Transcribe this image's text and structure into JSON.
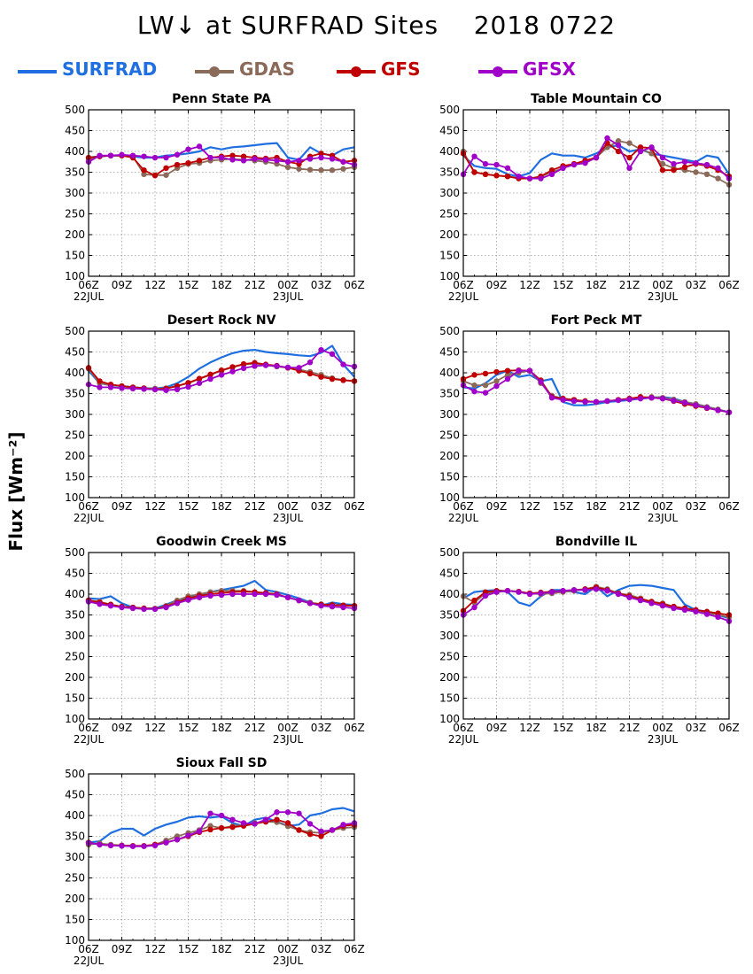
{
  "page": {
    "title": "LW↓ at SURFRAD Sites    2018 0722",
    "ylabel": "Flux [Wm⁻²]"
  },
  "legend": [
    {
      "name": "SURFRAD",
      "color": "#1f6fe0",
      "marker": false
    },
    {
      "name": "GDAS",
      "color": "#8c6a5a",
      "marker": true
    },
    {
      "name": "GFS",
      "color": "#c00000",
      "marker": true
    },
    {
      "name": "GFSX",
      "color": "#a000c8",
      "marker": true
    }
  ],
  "axes": {
    "x_ticks": [
      "06Z",
      "09Z",
      "12Z",
      "15Z",
      "18Z",
      "21Z",
      "00Z",
      "03Z",
      "06Z"
    ],
    "x_date_labels": [
      {
        "at": "06Z",
        "label": "22JUL"
      },
      {
        "at": "00Z",
        "label": "23JUL"
      }
    ],
    "y_ticks": [
      100,
      150,
      200,
      250,
      300,
      350,
      400,
      450,
      500
    ]
  },
  "chart_data": [
    {
      "type": "line",
      "title": "Penn State PA",
      "x": [
        6,
        7,
        8,
        9,
        10,
        11,
        12,
        13,
        14,
        15,
        16,
        17,
        18,
        19,
        20,
        21,
        22,
        23,
        24,
        25,
        26,
        27,
        28,
        29,
        30
      ],
      "xlim": [
        6,
        30
      ],
      "ylim": [
        100,
        500
      ],
      "grid": true,
      "series": [
        {
          "name": "SURFRAD",
          "values": [
            385,
            388,
            390,
            390,
            388,
            385,
            385,
            390,
            392,
            395,
            400,
            410,
            405,
            410,
            412,
            415,
            418,
            420,
            385,
            380,
            410,
            395,
            390,
            405,
            410
          ]
        },
        {
          "name": "GDAS",
          "values": [
            380,
            388,
            390,
            390,
            388,
            345,
            343,
            343,
            360,
            370,
            372,
            378,
            380,
            382,
            380,
            378,
            375,
            370,
            362,
            358,
            356,
            355,
            355,
            358,
            362
          ]
        },
        {
          "name": "GFS",
          "values": [
            385,
            388,
            390,
            390,
            385,
            355,
            342,
            360,
            368,
            372,
            378,
            385,
            388,
            390,
            388,
            385,
            383,
            385,
            375,
            370,
            388,
            395,
            390,
            375,
            378
          ]
        },
        {
          "name": "GFSX",
          "values": [
            375,
            390,
            390,
            392,
            390,
            388,
            385,
            385,
            392,
            405,
            412,
            385,
            385,
            380,
            378,
            382,
            380,
            378,
            375,
            378,
            382,
            385,
            382,
            375,
            368
          ]
        }
      ]
    },
    {
      "type": "line",
      "title": "Table Mountain CO",
      "x": [
        6,
        7,
        8,
        9,
        10,
        11,
        12,
        13,
        14,
        15,
        16,
        17,
        18,
        19,
        20,
        21,
        22,
        23,
        24,
        25,
        26,
        27,
        28,
        29,
        30
      ],
      "xlim": [
        6,
        30
      ],
      "ylim": [
        100,
        500
      ],
      "grid": true,
      "series": [
        {
          "name": "SURFRAD",
          "values": [
            390,
            365,
            360,
            358,
            345,
            340,
            348,
            380,
            395,
            390,
            390,
            385,
            395,
            410,
            415,
            400,
            405,
            395,
            390,
            385,
            380,
            375,
            390,
            385,
            345
          ]
        },
        {
          "name": "GDAS",
          "values": [
            400,
            350,
            345,
            342,
            340,
            336,
            335,
            340,
            350,
            360,
            370,
            375,
            385,
            410,
            425,
            420,
            405,
            395,
            370,
            360,
            355,
            350,
            345,
            335,
            320
          ]
        },
        {
          "name": "GFS",
          "values": [
            395,
            350,
            345,
            342,
            340,
            335,
            335,
            340,
            355,
            365,
            370,
            378,
            385,
            420,
            400,
            385,
            410,
            408,
            355,
            355,
            362,
            370,
            365,
            355,
            340
          ]
        },
        {
          "name": "GFSX",
          "values": [
            345,
            388,
            370,
            368,
            360,
            340,
            335,
            335,
            345,
            360,
            368,
            372,
            385,
            432,
            415,
            360,
            400,
            410,
            385,
            370,
            375,
            372,
            368,
            360,
            335
          ]
        }
      ]
    },
    {
      "type": "line",
      "title": "Desert Rock NV",
      "x": [
        6,
        7,
        8,
        9,
        10,
        11,
        12,
        13,
        14,
        15,
        16,
        17,
        18,
        19,
        20,
        21,
        22,
        23,
        24,
        25,
        26,
        27,
        28,
        29,
        30
      ],
      "xlim": [
        6,
        30
      ],
      "ylim": [
        100,
        500
      ],
      "grid": true,
      "series": [
        {
          "name": "SURFRAD",
          "values": [
            405,
            375,
            370,
            368,
            365,
            363,
            362,
            365,
            375,
            390,
            410,
            425,
            437,
            447,
            453,
            455,
            450,
            447,
            445,
            442,
            440,
            448,
            465,
            420,
            390
          ]
        },
        {
          "name": "GDAS",
          "values": [
            410,
            375,
            370,
            368,
            365,
            363,
            362,
            363,
            368,
            375,
            385,
            395,
            405,
            413,
            420,
            422,
            418,
            415,
            412,
            408,
            402,
            395,
            387,
            383,
            380
          ]
        },
        {
          "name": "GFS",
          "values": [
            412,
            380,
            372,
            368,
            365,
            363,
            360,
            362,
            368,
            376,
            386,
            396,
            406,
            414,
            421,
            424,
            420,
            417,
            412,
            405,
            398,
            390,
            385,
            382,
            380
          ]
        },
        {
          "name": "GFSX",
          "values": [
            372,
            365,
            365,
            363,
            362,
            361,
            360,
            358,
            360,
            366,
            375,
            385,
            395,
            403,
            411,
            416,
            418,
            416,
            413,
            412,
            425,
            455,
            445,
            420,
            415
          ]
        }
      ]
    },
    {
      "type": "line",
      "title": "Fort Peck MT",
      "x": [
        6,
        7,
        8,
        9,
        10,
        11,
        12,
        13,
        14,
        15,
        16,
        17,
        18,
        19,
        20,
        21,
        22,
        23,
        24,
        25,
        26,
        27,
        28,
        29,
        30
      ],
      "xlim": [
        6,
        30
      ],
      "ylim": [
        100,
        500
      ],
      "grid": true,
      "series": [
        {
          "name": "SURFRAD",
          "values": [
            365,
            362,
            375,
            395,
            405,
            390,
            395,
            380,
            385,
            330,
            322,
            322,
            325,
            330,
            332,
            335,
            338,
            340,
            342,
            338,
            330,
            325,
            318,
            312,
            305
          ]
        },
        {
          "name": "GDAS",
          "values": [
            380,
            370,
            370,
            380,
            395,
            400,
            405,
            375,
            345,
            338,
            335,
            332,
            330,
            332,
            335,
            338,
            340,
            342,
            340,
            336,
            330,
            325,
            318,
            312,
            305
          ]
        },
        {
          "name": "GFS",
          "values": [
            385,
            395,
            398,
            402,
            405,
            406,
            405,
            382,
            342,
            338,
            335,
            332,
            330,
            332,
            335,
            338,
            342,
            340,
            338,
            332,
            325,
            320,
            315,
            310,
            305
          ]
        },
        {
          "name": "GFSX",
          "values": [
            370,
            355,
            352,
            368,
            385,
            405,
            405,
            378,
            340,
            335,
            332,
            330,
            330,
            332,
            334,
            336,
            338,
            340,
            338,
            333,
            328,
            322,
            316,
            310,
            305
          ]
        }
      ]
    },
    {
      "type": "line",
      "title": "Goodwin Creek MS",
      "x": [
        6,
        7,
        8,
        9,
        10,
        11,
        12,
        13,
        14,
        15,
        16,
        17,
        18,
        19,
        20,
        21,
        22,
        23,
        24,
        25,
        26,
        27,
        28,
        29,
        30
      ],
      "xlim": [
        6,
        30
      ],
      "ylim": [
        100,
        500
      ],
      "grid": true,
      "series": [
        {
          "name": "SURFRAD",
          "values": [
            390,
            388,
            395,
            378,
            368,
            365,
            366,
            375,
            385,
            392,
            398,
            405,
            410,
            415,
            420,
            432,
            410,
            405,
            398,
            390,
            380,
            372,
            380,
            376,
            374
          ]
        },
        {
          "name": "GDAS",
          "values": [
            385,
            382,
            375,
            370,
            368,
            365,
            365,
            372,
            385,
            395,
            400,
            405,
            408,
            408,
            408,
            405,
            402,
            398,
            392,
            385,
            380,
            376,
            374,
            373,
            372
          ]
        },
        {
          "name": "GFS",
          "values": [
            385,
            380,
            375,
            370,
            368,
            366,
            365,
            370,
            380,
            390,
            396,
            400,
            403,
            405,
            406,
            405,
            403,
            400,
            392,
            385,
            378,
            375,
            374,
            373,
            372
          ]
        },
        {
          "name": "GFSX",
          "values": [
            382,
            376,
            372,
            368,
            366,
            364,
            364,
            368,
            378,
            386,
            392,
            396,
            398,
            400,
            400,
            400,
            400,
            398,
            392,
            385,
            378,
            372,
            370,
            368,
            366
          ]
        }
      ]
    },
    {
      "type": "line",
      "title": "Bondville IL",
      "x": [
        6,
        7,
        8,
        9,
        10,
        11,
        12,
        13,
        14,
        15,
        16,
        17,
        18,
        19,
        20,
        21,
        22,
        23,
        24,
        25,
        26,
        27,
        28,
        29,
        30
      ],
      "xlim": [
        6,
        30
      ],
      "ylim": [
        100,
        500
      ],
      "grid": true,
      "series": [
        {
          "name": "SURFRAD",
          "values": [
            390,
            405,
            408,
            410,
            405,
            380,
            372,
            395,
            410,
            410,
            405,
            400,
            418,
            395,
            410,
            420,
            422,
            420,
            415,
            410,
            375,
            362,
            358,
            350,
            342
          ]
        },
        {
          "name": "GDAS",
          "values": [
            395,
            380,
            402,
            405,
            408,
            406,
            402,
            400,
            402,
            405,
            408,
            412,
            418,
            412,
            402,
            398,
            390,
            382,
            378,
            370,
            365,
            360,
            355,
            350,
            345
          ]
        },
        {
          "name": "GFS",
          "values": [
            360,
            385,
            405,
            408,
            408,
            406,
            402,
            404,
            406,
            408,
            410,
            412,
            416,
            410,
            402,
            395,
            388,
            382,
            376,
            370,
            366,
            362,
            358,
            354,
            350
          ]
        },
        {
          "name": "GFSX",
          "values": [
            350,
            368,
            396,
            405,
            408,
            405,
            400,
            402,
            405,
            408,
            410,
            410,
            412,
            408,
            400,
            392,
            385,
            378,
            372,
            366,
            362,
            358,
            352,
            345,
            335
          ]
        }
      ]
    },
    {
      "type": "line",
      "title": "Sioux Fall SD",
      "x": [
        6,
        7,
        8,
        9,
        10,
        11,
        12,
        13,
        14,
        15,
        16,
        17,
        18,
        19,
        20,
        21,
        22,
        23,
        24,
        25,
        26,
        27,
        28,
        29,
        30
      ],
      "xlim": [
        6,
        30
      ],
      "ylim": [
        100,
        500
      ],
      "grid": true,
      "series": [
        {
          "name": "SURFRAD",
          "values": [
            335,
            338,
            358,
            368,
            368,
            352,
            368,
            378,
            385,
            395,
            398,
            395,
            398,
            382,
            375,
            390,
            395,
            385,
            375,
            378,
            400,
            405,
            415,
            418,
            410
          ]
        },
        {
          "name": "GDAS",
          "values": [
            330,
            333,
            330,
            328,
            327,
            327,
            330,
            340,
            350,
            358,
            365,
            375,
            370,
            374,
            378,
            382,
            385,
            384,
            374,
            365,
            360,
            358,
            365,
            370,
            372
          ]
        },
        {
          "name": "GFS",
          "values": [
            335,
            330,
            328,
            328,
            327,
            327,
            330,
            335,
            342,
            350,
            360,
            366,
            370,
            372,
            375,
            380,
            385,
            390,
            382,
            365,
            355,
            350,
            365,
            375,
            378
          ]
        },
        {
          "name": "GFSX",
          "values": [
            334,
            330,
            328,
            327,
            326,
            326,
            328,
            335,
            342,
            352,
            362,
            405,
            400,
            390,
            382,
            380,
            390,
            408,
            408,
            405,
            380,
            362,
            365,
            378,
            382
          ]
        }
      ]
    }
  ]
}
